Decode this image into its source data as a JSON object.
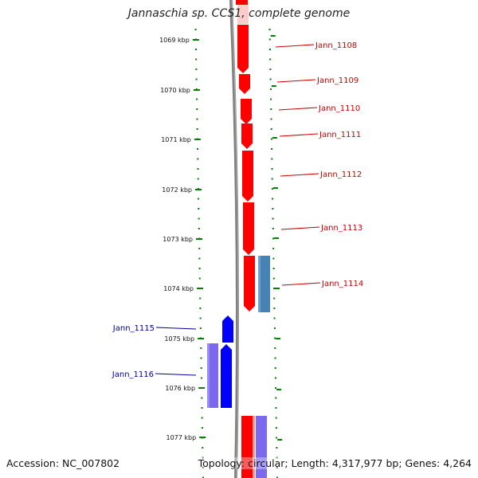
{
  "title": "Jannaschia sp. CCS1, complete genome",
  "footer": {
    "accession": "Accession: NC_007802",
    "summary": "Topology: circular; Length: 4,317,977 bp; Genes: 4,264"
  },
  "scale_labels": [
    "1069 kbp",
    "1070 kbp",
    "1071 kbp",
    "1072 kbp",
    "1073 kbp",
    "1074 kbp",
    "1075 kbp",
    "1076 kbp",
    "1077 kbp"
  ],
  "genes": [
    {
      "label": "Jann_1108",
      "strand": "forward",
      "color": "#ff0000"
    },
    {
      "label": "Jann_1109",
      "strand": "forward",
      "color": "#ff0000"
    },
    {
      "label": "Jann_1110",
      "strand": "forward",
      "color": "#ff0000"
    },
    {
      "label": "Jann_1111",
      "strand": "forward",
      "color": "#ff0000"
    },
    {
      "label": "Jann_1112",
      "strand": "forward",
      "color": "#ff0000"
    },
    {
      "label": "Jann_1113",
      "strand": "forward",
      "color": "#ff0000"
    },
    {
      "label": "Jann_1114",
      "strand": "forward",
      "color": "#ff0000"
    },
    {
      "label": "Jann_1115",
      "strand": "reverse",
      "color": "#0000ff"
    },
    {
      "label": "Jann_1116",
      "strand": "reverse",
      "color": "#0000ff"
    }
  ],
  "colors": {
    "forward_label": "#cc0000",
    "reverse_label": "#000099",
    "forward_feature": "#ff0000",
    "reverse_feature": "#0000ff",
    "feature_blue": "#4682b4",
    "feature_purple": "#7b68ee",
    "backbone": "#808080",
    "scale_ticks": "#008000"
  }
}
